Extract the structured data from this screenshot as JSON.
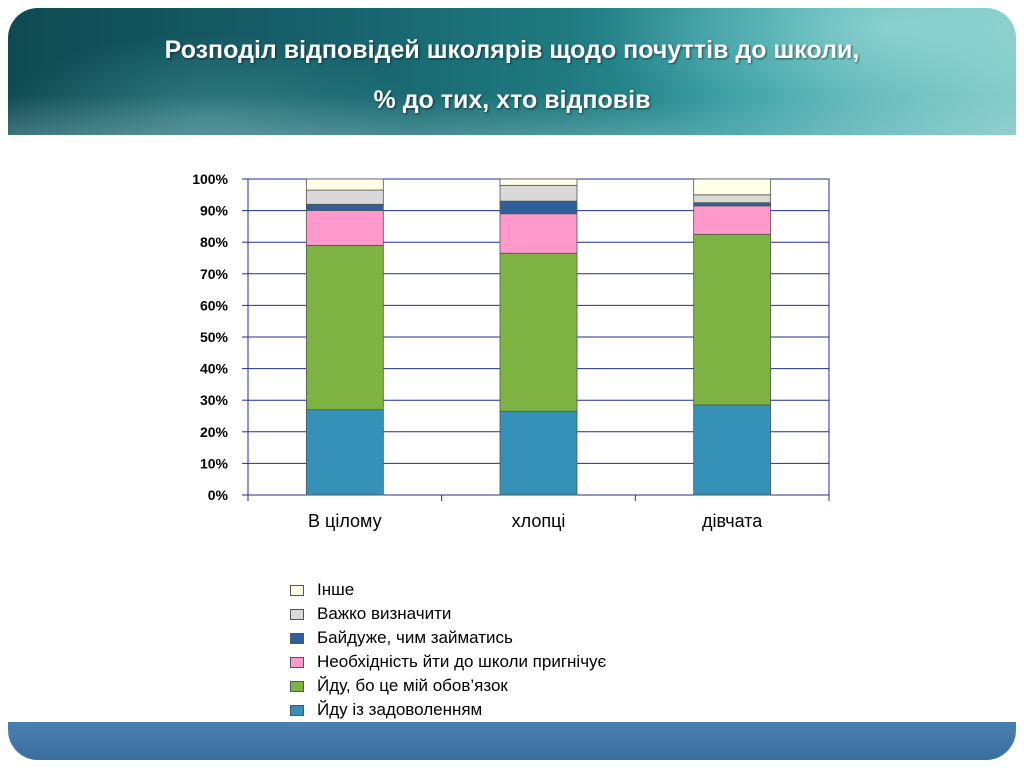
{
  "slide": {
    "title_line1": "Розподіл відповідей школярів щодо почуттів до школи,",
    "title_line2": "% до тих, хто відповів"
  },
  "chart_data": {
    "type": "bar",
    "stacked": true,
    "percent_stacked": true,
    "categories": [
      "В цілому",
      "хлопці",
      "дівчата"
    ],
    "series": [
      {
        "name": "Йду із задоволенням",
        "color": "#3591b7",
        "values": [
          27,
          26.5,
          28.5
        ]
      },
      {
        "name": "Йду, бо це мій обов’язок",
        "color": "#7cb342",
        "values": [
          52,
          50,
          54
        ]
      },
      {
        "name": "Необхідність йти до школи пригнічує",
        "color": "#ff99cc",
        "values": [
          11,
          12.5,
          9
        ]
      },
      {
        "name": "Байдуже, чим займатись",
        "color": "#2f5f9a",
        "values": [
          2,
          4,
          1
        ]
      },
      {
        "name": "Важко визначити",
        "color": "#d9d9d9",
        "values": [
          4.5,
          5,
          2.5
        ]
      },
      {
        "name": "Інше",
        "color": "#ffffe6",
        "values": [
          3.5,
          2,
          5
        ]
      }
    ],
    "y_ticks": [
      "0%",
      "10%",
      "20%",
      "30%",
      "40%",
      "50%",
      "60%",
      "70%",
      "80%",
      "90%",
      "100%"
    ],
    "ylim": [
      0,
      100
    ],
    "grid": true,
    "legend_position": "bottom"
  }
}
